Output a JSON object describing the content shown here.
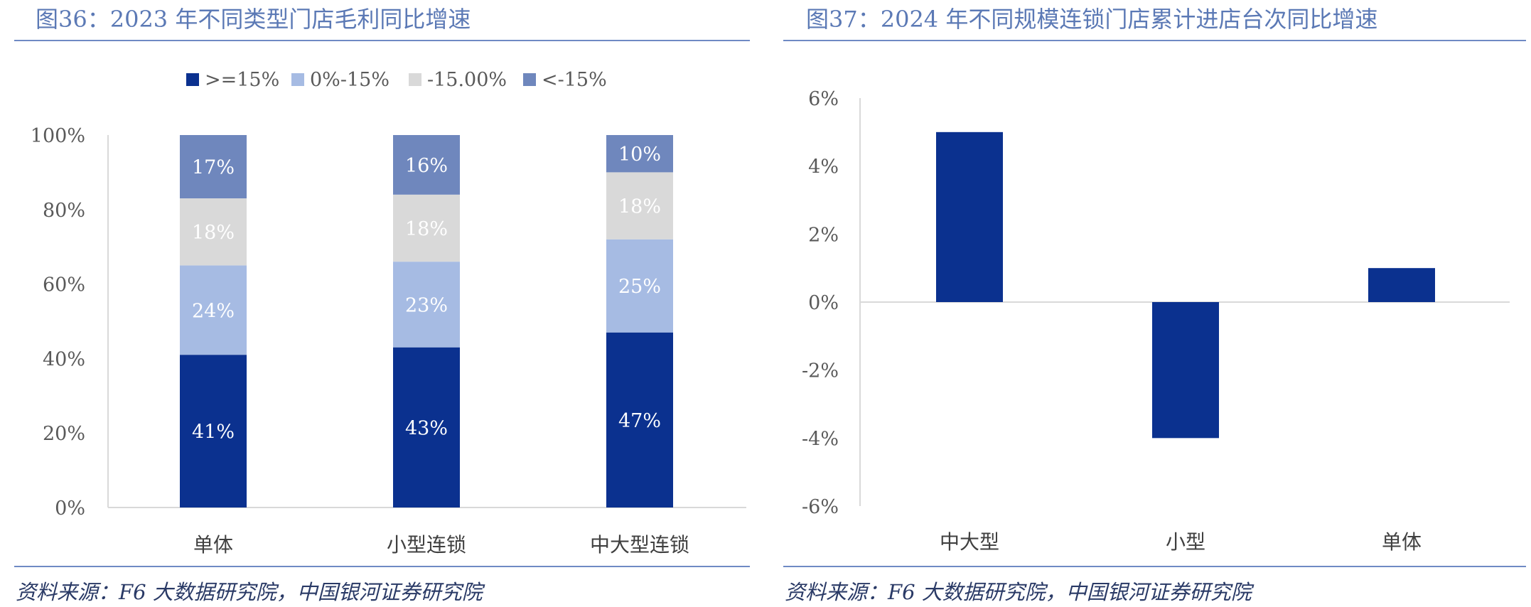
{
  "colors": {
    "title": "#5b79b5",
    "rule": "#6f8ac4",
    "source": "#2a3a66",
    "axis_text": "#595959",
    "axis_line": "#d9d9d9",
    "series_ge15": "#0b318f",
    "series_0_15": "#a6bbe3",
    "series_neg15": "#d9d9d9",
    "series_lt_neg15": "#6f87bd",
    "bar_right": "#0b318f"
  },
  "left": {
    "title": "图36：2023 年不同类型门店毛利同比增速",
    "source": "资料来源：F6 大数据研究院，中国银河证券研究院",
    "chart_data": {
      "type": "bar",
      "stacked": true,
      "categories": [
        "单体",
        "小型连锁",
        "中大型连锁"
      ],
      "series": [
        {
          "name": ">=15%",
          "values": [
            41,
            43,
            47
          ],
          "labels": [
            "41%",
            "43%",
            "47%"
          ]
        },
        {
          "name": "0%-15%",
          "values": [
            24,
            23,
            25
          ],
          "labels": [
            "24%",
            "23%",
            "25%"
          ]
        },
        {
          "name": "-15.00%",
          "values": [
            18,
            18,
            18
          ],
          "labels": [
            "18%",
            "18%",
            "18%"
          ]
        },
        {
          "name": "<-15%",
          "values": [
            17,
            16,
            10
          ],
          "labels": [
            "17%",
            "16%",
            "10%"
          ]
        }
      ],
      "yticks": [
        "0%",
        "20%",
        "40%",
        "60%",
        "80%",
        "100%"
      ],
      "ylim": [
        0,
        100
      ],
      "legend_position": "top-center",
      "grid": false
    }
  },
  "right": {
    "title": "图37：2024 年不同规模连锁门店累计进店台次同比增速",
    "source": "资料来源：F6 大数据研究院，中国银河证券研究院",
    "chart_data": {
      "type": "bar",
      "categories": [
        "中大型",
        "小型",
        "单体"
      ],
      "values": [
        5,
        -4,
        1
      ],
      "yticks": [
        "-6%",
        "-4%",
        "-2%",
        "0%",
        "2%",
        "4%",
        "6%"
      ],
      "ylim": [
        -6,
        6
      ],
      "grid": false
    }
  }
}
